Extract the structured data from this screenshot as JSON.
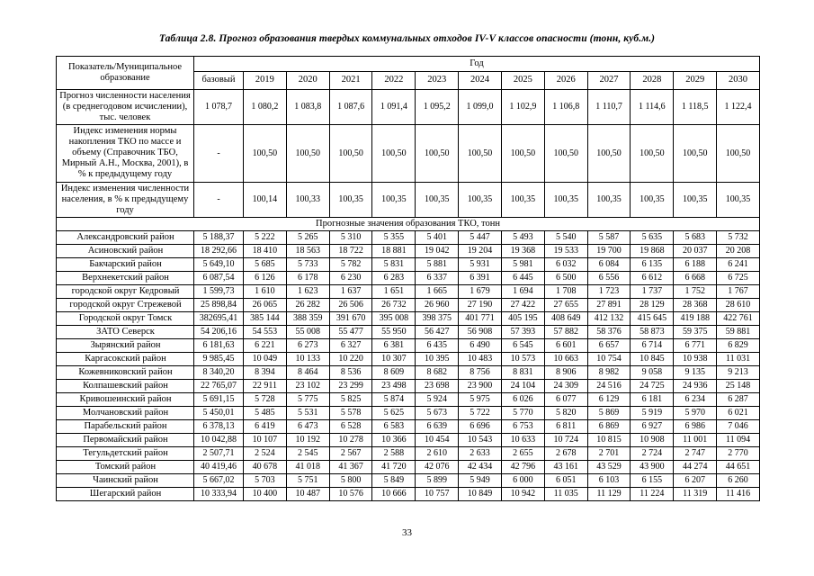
{
  "page": {
    "title": "Таблица 2.8. Прогноз образования твердых коммунальных отходов IV-V классов опасности (тонн, куб.м.)",
    "page_number": "33"
  },
  "table": {
    "corner_header": "Показатель/Муниципальное образование",
    "year_group_header": "Год",
    "columns": [
      "базовый",
      "2019",
      "2020",
      "2021",
      "2022",
      "2023",
      "2024",
      "2025",
      "2026",
      "2027",
      "2028",
      "2029",
      "2030"
    ],
    "indicator_rows": [
      {
        "label": "Прогноз численности населения (в среднегодовом исчислении), тыс. человек",
        "values": [
          "1 078,7",
          "1 080,2",
          "1 083,8",
          "1 087,6",
          "1 091,4",
          "1 095,2",
          "1 099,0",
          "1 102,9",
          "1 106,8",
          "1 110,7",
          "1 114,6",
          "1 118,5",
          "1 122,4"
        ]
      },
      {
        "label": "Индекс изменения нормы накопления ТКО по массе и объему (Справочник ТБО, Мирный А.Н., Москва, 2001), в % к предыдущему году",
        "values": [
          "-",
          "100,50",
          "100,50",
          "100,50",
          "100,50",
          "100,50",
          "100,50",
          "100,50",
          "100,50",
          "100,50",
          "100,50",
          "100,50",
          "100,50"
        ]
      },
      {
        "label": "Индекс изменения численности населения, в % к предыдущему году",
        "values": [
          "-",
          "100,14",
          "100,33",
          "100,35",
          "100,35",
          "100,35",
          "100,35",
          "100,35",
          "100,35",
          "100,35",
          "100,35",
          "100,35",
          "100,35"
        ]
      }
    ],
    "section_header": "Прогнозные значения образования ТКО, тонн",
    "district_rows": [
      {
        "label": "Александровский район",
        "values": [
          "5 188,37",
          "5 222",
          "5 265",
          "5 310",
          "5 355",
          "5 401",
          "5 447",
          "5 493",
          "5 540",
          "5 587",
          "5 635",
          "5 683",
          "5 732"
        ]
      },
      {
        "label": "Асиновский район",
        "values": [
          "18 292,66",
          "18 410",
          "18 563",
          "18 722",
          "18 881",
          "19 042",
          "19 204",
          "19 368",
          "19 533",
          "19 700",
          "19 868",
          "20 037",
          "20 208"
        ]
      },
      {
        "label": "Бакчарский район",
        "values": [
          "5 649,10",
          "5 685",
          "5 733",
          "5 782",
          "5 831",
          "5 881",
          "5 931",
          "5 981",
          "6 032",
          "6 084",
          "6 135",
          "6 188",
          "6 241"
        ]
      },
      {
        "label": "Верхнекетский район",
        "values": [
          "6 087,54",
          "6 126",
          "6 178",
          "6 230",
          "6 283",
          "6 337",
          "6 391",
          "6 445",
          "6 500",
          "6 556",
          "6 612",
          "6 668",
          "6 725"
        ]
      },
      {
        "label": "городской округ Кедровый",
        "values": [
          "1 599,73",
          "1 610",
          "1 623",
          "1 637",
          "1 651",
          "1 665",
          "1 679",
          "1 694",
          "1 708",
          "1 723",
          "1 737",
          "1 752",
          "1 767"
        ]
      },
      {
        "label": "городской округ Стрежевой",
        "values": [
          "25 898,84",
          "26 065",
          "26 282",
          "26 506",
          "26 732",
          "26 960",
          "27 190",
          "27 422",
          "27 655",
          "27 891",
          "28 129",
          "28 368",
          "28 610"
        ]
      },
      {
        "label": "Городской округ Томск",
        "values": [
          "382695,41",
          "385 144",
          "388 359",
          "391 670",
          "395 008",
          "398 375",
          "401 771",
          "405 195",
          "408 649",
          "412 132",
          "415 645",
          "419 188",
          "422 761"
        ]
      },
      {
        "label": "ЗАТО Северск",
        "values": [
          "54 206,16",
          "54 553",
          "55 008",
          "55 477",
          "55 950",
          "56 427",
          "56 908",
          "57 393",
          "57 882",
          "58 376",
          "58 873",
          "59 375",
          "59 881"
        ]
      },
      {
        "label": "Зырянский район",
        "values": [
          "6 181,63",
          "6 221",
          "6 273",
          "6 327",
          "6 381",
          "6 435",
          "6 490",
          "6 545",
          "6 601",
          "6 657",
          "6 714",
          "6 771",
          "6 829"
        ]
      },
      {
        "label": "Каргасокский район",
        "values": [
          "9 985,45",
          "10 049",
          "10 133",
          "10 220",
          "10 307",
          "10 395",
          "10 483",
          "10 573",
          "10 663",
          "10 754",
          "10 845",
          "10 938",
          "11 031"
        ]
      },
      {
        "label": "Кожевниковский район",
        "values": [
          "8 340,20",
          "8 394",
          "8 464",
          "8 536",
          "8 609",
          "8 682",
          "8 756",
          "8 831",
          "8 906",
          "8 982",
          "9 058",
          "9 135",
          "9 213"
        ]
      },
      {
        "label": "Колпашевский район",
        "values": [
          "22 765,07",
          "22 911",
          "23 102",
          "23 299",
          "23 498",
          "23 698",
          "23 900",
          "24 104",
          "24 309",
          "24 516",
          "24 725",
          "24 936",
          "25 148"
        ]
      },
      {
        "label": "Кривошеинский район",
        "values": [
          "5 691,15",
          "5 728",
          "5 775",
          "5 825",
          "5 874",
          "5 924",
          "5 975",
          "6 026",
          "6 077",
          "6 129",
          "6 181",
          "6 234",
          "6 287"
        ]
      },
      {
        "label": "Молчановский район",
        "values": [
          "5 450,01",
          "5 485",
          "5 531",
          "5 578",
          "5 625",
          "5 673",
          "5 722",
          "5 770",
          "5 820",
          "5 869",
          "5 919",
          "5 970",
          "6 021"
        ]
      },
      {
        "label": "Парабельский район",
        "values": [
          "6 378,13",
          "6 419",
          "6 473",
          "6 528",
          "6 583",
          "6 639",
          "6 696",
          "6 753",
          "6 811",
          "6 869",
          "6 927",
          "6 986",
          "7 046"
        ]
      },
      {
        "label": "Первомайский район",
        "values": [
          "10 042,88",
          "10 107",
          "10 192",
          "10 278",
          "10 366",
          "10 454",
          "10 543",
          "10 633",
          "10 724",
          "10 815",
          "10 908",
          "11 001",
          "11 094"
        ]
      },
      {
        "label": "Тегульдетский район",
        "values": [
          "2 507,71",
          "2 524",
          "2 545",
          "2 567",
          "2 588",
          "2 610",
          "2 633",
          "2 655",
          "2 678",
          "2 701",
          "2 724",
          "2 747",
          "2 770"
        ]
      },
      {
        "label": "Томский район",
        "values": [
          "40 419,46",
          "40 678",
          "41 018",
          "41 367",
          "41 720",
          "42 076",
          "42 434",
          "42 796",
          "43 161",
          "43 529",
          "43 900",
          "44 274",
          "44 651"
        ]
      },
      {
        "label": "Чаинский район",
        "values": [
          "5 667,02",
          "5 703",
          "5 751",
          "5 800",
          "5 849",
          "5 899",
          "5 949",
          "6 000",
          "6 051",
          "6 103",
          "6 155",
          "6 207",
          "6 260"
        ]
      },
      {
        "label": "Шегарский район",
        "values": [
          "10 333,94",
          "10 400",
          "10 487",
          "10 576",
          "10 666",
          "10 757",
          "10 849",
          "10 942",
          "11 035",
          "11 129",
          "11 224",
          "11 319",
          "11 416"
        ]
      }
    ]
  }
}
